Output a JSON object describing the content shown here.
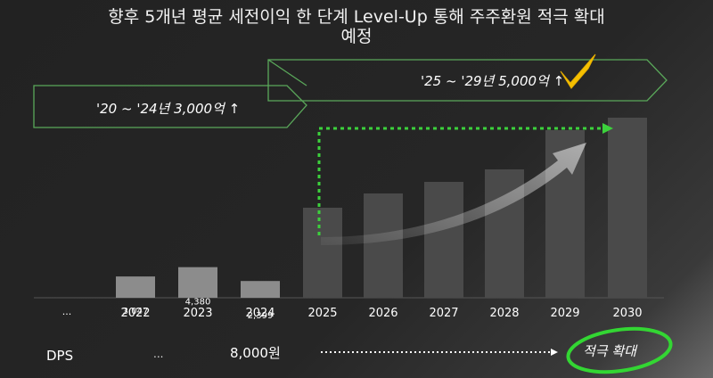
{
  "title_line1": "향후 5개년 평균 세전이익 한 단계 Level-Up 통해 주주환원 적극 확대",
  "title_line2": "예정",
  "colors": {
    "background": "#262626",
    "bar_past": "#8c8c8c",
    "bar_future": "#4a4a4a",
    "arrow_green": "#5aa85a",
    "dotted_green": "#3cd13c",
    "check_yellow": "#f5c000",
    "ellipse_green": "#33d633"
  },
  "banner_past": "'20 ~ '24년 3,000억 ↑",
  "banner_future": "'25 ~ '29년 5,000억 ↑",
  "check_icon": "check-mark-icon",
  "dps": {
    "label": "DPS",
    "ellipsis": "...",
    "value": "8,000원",
    "highlight": "적극 확대"
  },
  "chart_data": {
    "type": "bar",
    "categories": [
      "...",
      "2022",
      "2023",
      "2024",
      "2025",
      "2026",
      "2027",
      "2028",
      "2029",
      "2030"
    ],
    "values": [
      null,
      3047,
      4380,
      2399,
      null,
      null,
      null,
      null,
      null,
      null
    ],
    "value_labels": [
      "",
      "3,047",
      "4,380",
      "2,399",
      "",
      "",
      "",
      "",
      "",
      ""
    ],
    "ylim": [
      0,
      9000
    ]
  }
}
